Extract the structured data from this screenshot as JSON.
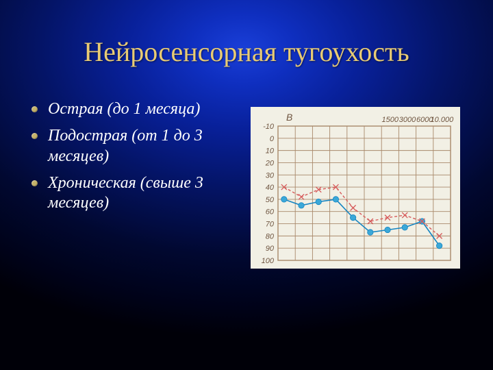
{
  "slide": {
    "title": "Нейросенсорная тугоухость",
    "title_color": "#e8cb74",
    "title_fontsize": 40,
    "bullet_fontsize": 24,
    "bullet_dot_color": "#c5b26a",
    "bullets": [
      "Острая (до 1 месяца)",
      "Подострая (от 1 до 3 месяцев)",
      "Хроническая (свыше 3 месяцев)"
    ],
    "background": {
      "type": "radial-gradient",
      "center_color": "#1a3fd8",
      "outer_color": "#000008"
    }
  },
  "audiogram": {
    "type": "line",
    "paper_bg": "#f2f0e5",
    "grid_color": "#a8886a",
    "grid_minor_color": "#c9b39a",
    "b_label": "B",
    "b_label_color": "#6f5540",
    "y_axis": {
      "from": -10,
      "to": 100,
      "step": 10,
      "labels": [
        "-10",
        "0",
        "10",
        "20",
        "30",
        "40",
        "50",
        "60",
        "70",
        "80",
        "90",
        "100"
      ],
      "label_color": "#6f5540",
      "label_fontsize": 11
    },
    "x_top_labels": {
      "values": [
        "1500",
        "3000",
        "6000",
        "10.000"
      ],
      "positions": [
        6,
        7,
        8,
        9
      ],
      "color": "#6f5540",
      "fontsize": 11
    },
    "x_columns": 10,
    "series": [
      {
        "name": "ac",
        "style": "solid",
        "color": "#1585c2",
        "marker": "circle",
        "marker_fill": "#3ba8d8",
        "marker_size": 4.2,
        "line_width": 1.6,
        "points": [
          {
            "col": 0,
            "y": 50
          },
          {
            "col": 1,
            "y": 55
          },
          {
            "col": 2,
            "y": 52
          },
          {
            "col": 3,
            "y": 50
          },
          {
            "col": 4,
            "y": 65
          },
          {
            "col": 5,
            "y": 77
          },
          {
            "col": 6,
            "y": 75
          },
          {
            "col": 7,
            "y": 73
          },
          {
            "col": 8,
            "y": 68
          },
          {
            "col": 9,
            "y": 88
          }
        ]
      },
      {
        "name": "bc",
        "style": "dashed",
        "color": "#d65b5b",
        "marker": "x",
        "marker_size": 4,
        "line_width": 1.4,
        "dash": "4 3",
        "points": [
          {
            "col": 0,
            "y": 40
          },
          {
            "col": 1,
            "y": 48
          },
          {
            "col": 2,
            "y": 42
          },
          {
            "col": 3,
            "y": 40
          },
          {
            "col": 4,
            "y": 57
          },
          {
            "col": 5,
            "y": 68
          },
          {
            "col": 6,
            "y": 65
          },
          {
            "col": 7,
            "y": 63
          },
          {
            "col": 8,
            "y": 68
          },
          {
            "col": 9,
            "y": 80
          }
        ]
      }
    ]
  }
}
